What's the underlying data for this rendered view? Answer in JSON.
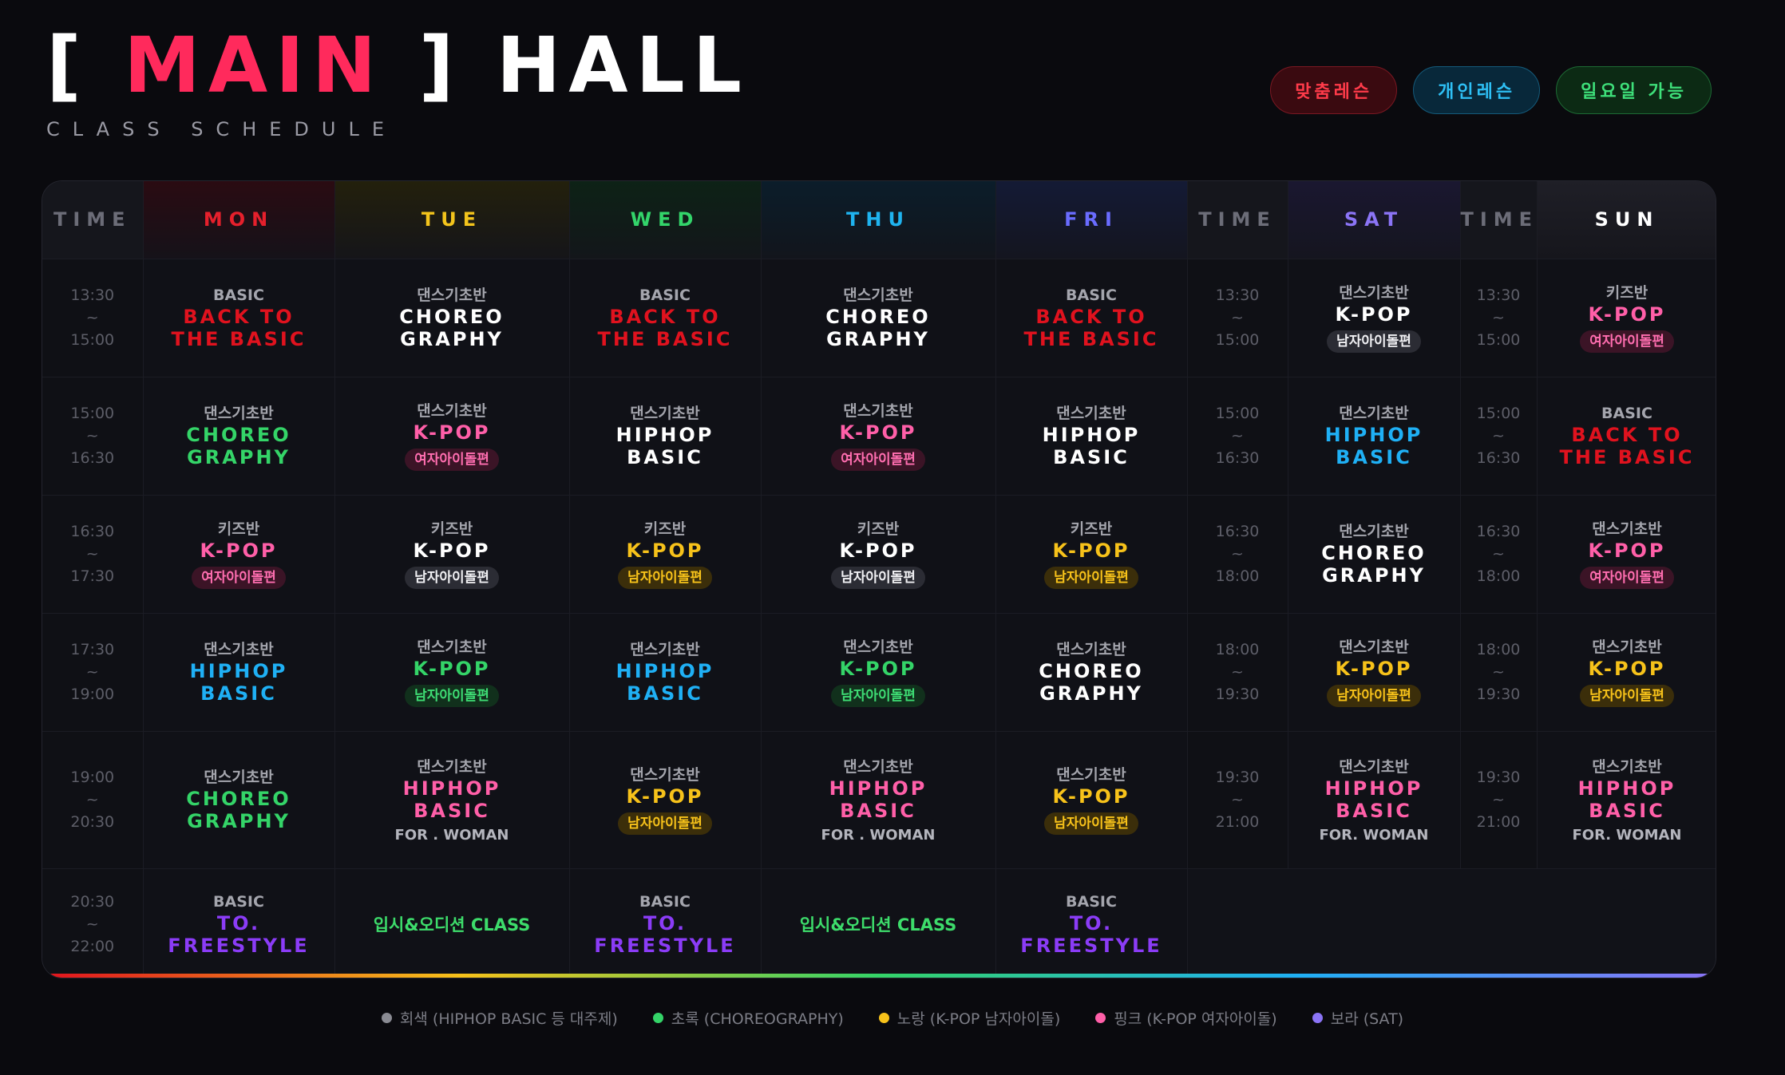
{
  "header": {
    "title_open": "[",
    "title_main": "MAIN",
    "title_close": "]",
    "title_hall": "HALL",
    "subtitle": "CLASS SCHEDULE"
  },
  "tags": [
    "맞춤레슨",
    "개인레슨",
    "일요일 가능"
  ],
  "columns": {
    "time": "TIME",
    "days": [
      "MON",
      "TUE",
      "WED",
      "THU",
      "FRI",
      "SAT",
      "SUN"
    ]
  },
  "rows": [
    {
      "time": [
        "13:30",
        "~",
        "15:00"
      ],
      "sat_time": [
        "13:30",
        "~",
        "15:00"
      ],
      "sun_time": [
        "13:30",
        "~",
        "15:00"
      ],
      "cells": [
        {
          "cat": "BASIC",
          "cls": "BACK TO\nTHE BASIC",
          "color": "red"
        },
        {
          "cat": "댄스기초반",
          "cls": "CHOREO\nGRAPHY",
          "color": "white"
        },
        {
          "cat": "BASIC",
          "cls": "BACK TO\nTHE BASIC",
          "color": "red"
        },
        {
          "cat": "댄스기초반",
          "cls": "CHOREO\nGRAPHY",
          "color": "white"
        },
        {
          "cat": "BASIC",
          "cls": "BACK TO\nTHE BASIC",
          "color": "red"
        },
        {
          "cat": "댄스기초반",
          "cls": "K-POP",
          "color": "white",
          "pill": "남자아이돌편",
          "pill_style": "gray"
        },
        {
          "cat": "키즈반",
          "cls": "K-POP",
          "color": "pink",
          "pill": "여자아이돌편",
          "pill_style": "pink"
        }
      ]
    },
    {
      "time": [
        "15:00",
        "~",
        "16:30"
      ],
      "sat_time": [
        "15:00",
        "~",
        "16:30"
      ],
      "sun_time": [
        "15:00",
        "~",
        "16:30"
      ],
      "cells": [
        {
          "cat": "댄스기초반",
          "cls": "CHOREO\nGRAPHY",
          "color": "green"
        },
        {
          "cat": "댄스기초반",
          "cls": "K-POP",
          "color": "pink",
          "pill": "여자아이돌편",
          "pill_style": "pink"
        },
        {
          "cat": "댄스기초반",
          "cls": "HIPHOP\nBASIC",
          "color": "white"
        },
        {
          "cat": "댄스기초반",
          "cls": "K-POP",
          "color": "pink",
          "pill": "여자아이돌편",
          "pill_style": "pink"
        },
        {
          "cat": "댄스기초반",
          "cls": "HIPHOP\nBASIC",
          "color": "white"
        },
        {
          "cat": "댄스기초반",
          "cls": "HIPHOP\nBASIC",
          "color": "cyan"
        },
        {
          "cat": "BASIC",
          "cls": "BACK TO\nTHE BASIC",
          "color": "red"
        }
      ]
    },
    {
      "time": [
        "16:30",
        "~",
        "17:30"
      ],
      "sat_time": [
        "16:30",
        "~",
        "18:00"
      ],
      "sun_time": [
        "16:30",
        "~",
        "18:00"
      ],
      "cells": [
        {
          "cat": "키즈반",
          "cls": "K-POP",
          "color": "pink",
          "pill": "여자아이돌편",
          "pill_style": "pink"
        },
        {
          "cat": "키즈반",
          "cls": "K-POP",
          "color": "white",
          "pill": "남자아이돌편",
          "pill_style": "gray"
        },
        {
          "cat": "키즈반",
          "cls": "K-POP",
          "color": "yellow",
          "pill": "남자아이돌편",
          "pill_style": "yellow"
        },
        {
          "cat": "키즈반",
          "cls": "K-POP",
          "color": "white",
          "pill": "남자아이돌편",
          "pill_style": "gray"
        },
        {
          "cat": "키즈반",
          "cls": "K-POP",
          "color": "yellow",
          "pill": "남자아이돌편",
          "pill_style": "yellow"
        },
        {
          "cat": "댄스기초반",
          "cls": "CHOREO\nGRAPHY",
          "color": "white"
        },
        {
          "cat": "댄스기초반",
          "cls": "K-POP",
          "color": "pink",
          "pill": "여자아이돌편",
          "pill_style": "pink"
        }
      ]
    },
    {
      "time": [
        "17:30",
        "~",
        "19:00"
      ],
      "sat_time": [
        "18:00",
        "~",
        "19:30"
      ],
      "sun_time": [
        "18:00",
        "~",
        "19:30"
      ],
      "cells": [
        {
          "cat": "댄스기초반",
          "cls": "HIPHOP\nBASIC",
          "color": "cyan"
        },
        {
          "cat": "댄스기초반",
          "cls": "K-POP",
          "color": "green",
          "pill": "남자아이돌편",
          "pill_style": "green"
        },
        {
          "cat": "댄스기초반",
          "cls": "HIPHOP\nBASIC",
          "color": "cyan"
        },
        {
          "cat": "댄스기초반",
          "cls": "K-POP",
          "color": "green",
          "pill": "남자아이돌편",
          "pill_style": "green"
        },
        {
          "cat": "댄스기초반",
          "cls": "CHOREO\nGRAPHY",
          "color": "white"
        },
        {
          "cat": "댄스기초반",
          "cls": "K-POP",
          "color": "yellow",
          "pill": "남자아이돌편",
          "pill_style": "yellow"
        },
        {
          "cat": "댄스기초반",
          "cls": "K-POP",
          "color": "yellow",
          "pill": "남자아이돌편",
          "pill_style": "yellow"
        }
      ]
    },
    {
      "time": [
        "19:00",
        "~",
        "20:30"
      ],
      "sat_time": [
        "19:30",
        "~",
        "21:00"
      ],
      "sun_time": [
        "19:30",
        "~",
        "21:00"
      ],
      "cells": [
        {
          "cat": "댄스기초반",
          "cls": "CHOREO\nGRAPHY",
          "color": "green"
        },
        {
          "cat": "댄스기초반",
          "cls": "HIPHOP\nBASIC",
          "color": "pink",
          "note": "FOR . WOMAN"
        },
        {
          "cat": "댄스기초반",
          "cls": "K-POP",
          "color": "yellow",
          "pill": "남자아이돌편",
          "pill_style": "yellow"
        },
        {
          "cat": "댄스기초반",
          "cls": "HIPHOP\nBASIC",
          "color": "pink",
          "note": "FOR . WOMAN"
        },
        {
          "cat": "댄스기초반",
          "cls": "K-POP",
          "color": "yellow",
          "pill": "남자아이돌편",
          "pill_style": "yellow"
        },
        {
          "cat": "댄스기초반",
          "cls": "HIPHOP\nBASIC",
          "color": "pink",
          "note": "FOR. WOMAN"
        },
        {
          "cat": "댄스기초반",
          "cls": "HIPHOP\nBASIC",
          "color": "pink",
          "note": "FOR. WOMAN"
        }
      ]
    }
  ],
  "last_row": {
    "time": [
      "20:30",
      "~",
      "22:00"
    ],
    "cells": [
      {
        "cat": "BASIC",
        "cls": "TO.\nFREESTYLE",
        "color": "purple"
      },
      {
        "audition": "입시&오디션 CLASS"
      },
      {
        "cat": "BASIC",
        "cls": "TO.\nFREESTYLE",
        "color": "purple"
      },
      {
        "audition": "입시&오디션 CLASS"
      },
      {
        "cat": "BASIC",
        "cls": "TO.\nFREESTYLE",
        "color": "purple"
      }
    ]
  },
  "legend": [
    {
      "label": "회색 (HIPHOP BASIC 등 대주제)",
      "color": "#8a8b93"
    },
    {
      "label": "초록 (CHOREOGRAPHY)",
      "color": "#34d468"
    },
    {
      "label": "노랑 (K-POP 남자아이돌)",
      "color": "#f7c21a"
    },
    {
      "label": "핑크 (K-POP 여자아이돌)",
      "color": "#ff5fa8"
    },
    {
      "label": "보라 (SAT)",
      "color": "#8b74f6"
    }
  ]
}
